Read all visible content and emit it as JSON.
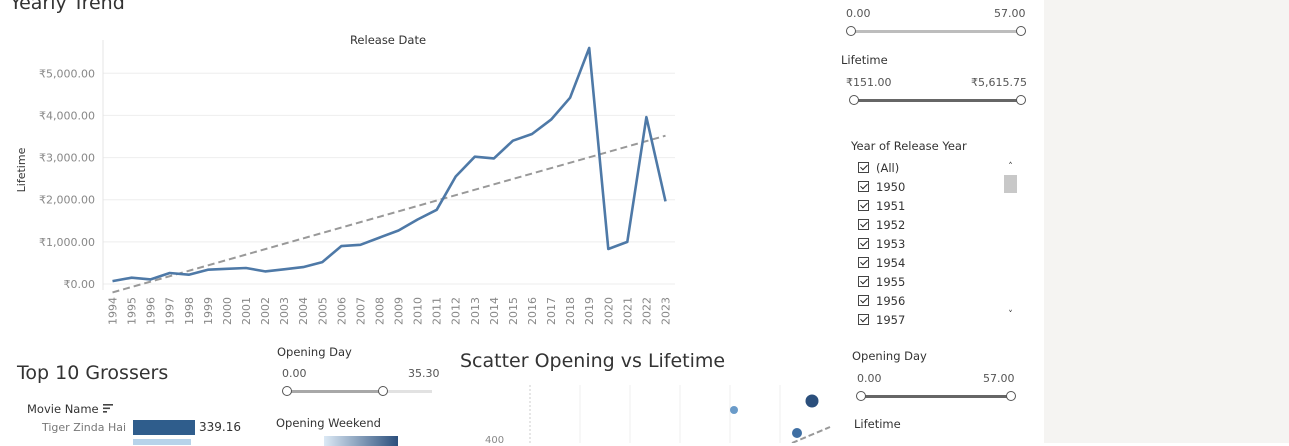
{
  "dashboard": {
    "yearly_trend_title": "Yearly Trend",
    "top_grossers_title": "Top 10 Grossers",
    "scatter_title": "Scatter Opening vs Lifetime"
  },
  "filters": {
    "top_range": {
      "min": "0.00",
      "max": "57.00"
    },
    "lifetime_top": {
      "label": "Lifetime",
      "min": "₹151.00",
      "max": "₹5,615.75"
    },
    "year_filter": {
      "label": "Year of Release Year",
      "items": [
        "(All)",
        "1950",
        "1951",
        "1952",
        "1953",
        "1954",
        "1955",
        "1956",
        "1957"
      ]
    },
    "opening_day_right": {
      "label": "Opening Day",
      "min": "0.00",
      "max": "57.00"
    },
    "lifetime_bottom": {
      "label": "Lifetime"
    },
    "opening_day_mid": {
      "label": "Opening Day",
      "min": "0.00",
      "max": "35.30"
    },
    "opening_weekend": {
      "label": "Opening Weekend"
    }
  },
  "top_grossers": {
    "column_header": "Movie Name",
    "rows": [
      {
        "name": "Tiger Zinda Hai",
        "value": "339.16",
        "color": "#2f5d8c"
      }
    ]
  },
  "scatter": {
    "y_tick": "400"
  },
  "chart_data": {
    "type": "line",
    "title": "Release Date",
    "xlabel": "",
    "ylabel": "Lifetime",
    "x": [
      "1994",
      "1995",
      "1996",
      "1997",
      "1998",
      "1999",
      "2000",
      "2001",
      "2002",
      "2003",
      "2004",
      "2005",
      "2006",
      "2007",
      "2008",
      "2009",
      "2010",
      "2011",
      "2012",
      "2013",
      "2014",
      "2015",
      "2016",
      "2017",
      "2018",
      "2019",
      "2020",
      "2021",
      "2022",
      "2023"
    ],
    "series": [
      {
        "values": [
          70,
          150,
          110,
          260,
          220,
          340,
          360,
          380,
          300,
          350,
          400,
          520,
          900,
          930,
          1100,
          1270,
          1530,
          1760,
          2550,
          3020,
          2980,
          3400,
          3560,
          3900,
          4420,
          5600,
          830,
          1000,
          3960,
          1960
        ],
        "color": "#4e79a7"
      }
    ],
    "trend_line": {
      "start": -200,
      "end": 3520,
      "color": "#999999",
      "style": "dashed"
    },
    "ylim": [
      0,
      5600
    ],
    "y_ticks": [
      0,
      1000,
      2000,
      3000,
      4000,
      5000
    ],
    "y_tick_labels": [
      "₹0.00",
      "₹1,000.00",
      "₹2,000.00",
      "₹3,000.00",
      "₹4,000.00",
      "₹5,000.00"
    ],
    "grid": true
  }
}
